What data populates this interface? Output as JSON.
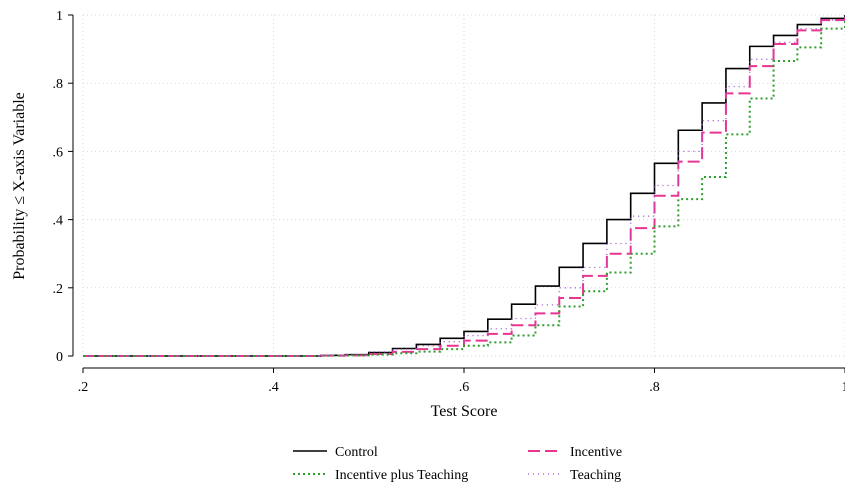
{
  "chart_data": {
    "type": "line",
    "step": true,
    "xlabel": "Test Score",
    "ylabel": "Probability ≤ X-axis Variable",
    "xlim": [
      0.2,
      1.0
    ],
    "ylim": [
      0,
      1
    ],
    "xticks": [
      0.2,
      0.4,
      0.6,
      0.8,
      1.0
    ],
    "xtick_labels": [
      ".2",
      ".4",
      ".6",
      ".8",
      "1"
    ],
    "yticks": [
      0,
      0.2,
      0.4,
      0.6,
      0.8,
      1.0
    ],
    "ytick_labels": [
      "0",
      ".2",
      ".4",
      ".6",
      ".8",
      "1"
    ],
    "grid": true,
    "legend_position": "bottom",
    "series": [
      {
        "name": "Control",
        "color": "#000000",
        "style": "solid",
        "x": [
          0.45,
          0.475,
          0.5,
          0.525,
          0.55,
          0.575,
          0.6,
          0.625,
          0.65,
          0.675,
          0.7,
          0.725,
          0.75,
          0.775,
          0.8,
          0.825,
          0.85,
          0.875,
          0.9,
          0.925,
          0.95,
          0.975,
          1.0
        ],
        "y": [
          0.002,
          0.004,
          0.01,
          0.022,
          0.034,
          0.052,
          0.072,
          0.108,
          0.152,
          0.205,
          0.26,
          0.33,
          0.4,
          0.477,
          0.565,
          0.662,
          0.742,
          0.843,
          0.908,
          0.94,
          0.972,
          0.99,
          1.0
        ]
      },
      {
        "name": "Incentive",
        "color": "#e8358f",
        "style": "dashed",
        "x": [
          0.45,
          0.475,
          0.5,
          0.525,
          0.55,
          0.575,
          0.6,
          0.625,
          0.65,
          0.675,
          0.7,
          0.725,
          0.75,
          0.775,
          0.8,
          0.825,
          0.85,
          0.875,
          0.9,
          0.925,
          0.95,
          0.975,
          1.0
        ],
        "y": [
          0.001,
          0.002,
          0.006,
          0.012,
          0.02,
          0.03,
          0.045,
          0.065,
          0.09,
          0.125,
          0.17,
          0.235,
          0.3,
          0.375,
          0.47,
          0.57,
          0.655,
          0.77,
          0.85,
          0.915,
          0.955,
          0.985,
          1.0
        ]
      },
      {
        "name": "Incentive plus Teaching",
        "color": "#2e9e2e",
        "style": "dotted",
        "x": [
          0.45,
          0.475,
          0.5,
          0.525,
          0.55,
          0.575,
          0.6,
          0.625,
          0.65,
          0.675,
          0.7,
          0.725,
          0.75,
          0.775,
          0.8,
          0.825,
          0.85,
          0.875,
          0.9,
          0.925,
          0.95,
          0.975,
          1.0
        ],
        "y": [
          0.001,
          0.002,
          0.004,
          0.008,
          0.013,
          0.02,
          0.03,
          0.04,
          0.06,
          0.09,
          0.145,
          0.19,
          0.245,
          0.3,
          0.38,
          0.46,
          0.525,
          0.65,
          0.755,
          0.865,
          0.905,
          0.96,
          0.99
        ]
      },
      {
        "name": "Teaching",
        "color": "#9a4fd0",
        "style": "sparse-dot",
        "x": [
          0.45,
          0.475,
          0.5,
          0.525,
          0.55,
          0.575,
          0.6,
          0.625,
          0.65,
          0.675,
          0.7,
          0.725,
          0.75,
          0.775,
          0.8,
          0.825,
          0.85,
          0.875,
          0.9,
          0.925,
          0.95,
          0.975,
          1.0
        ],
        "y": [
          0.002,
          0.005,
          0.012,
          0.02,
          0.03,
          0.042,
          0.06,
          0.08,
          0.11,
          0.15,
          0.2,
          0.26,
          0.33,
          0.41,
          0.5,
          0.6,
          0.69,
          0.79,
          0.87,
          0.92,
          0.96,
          0.985,
          1.0
        ]
      }
    ]
  }
}
